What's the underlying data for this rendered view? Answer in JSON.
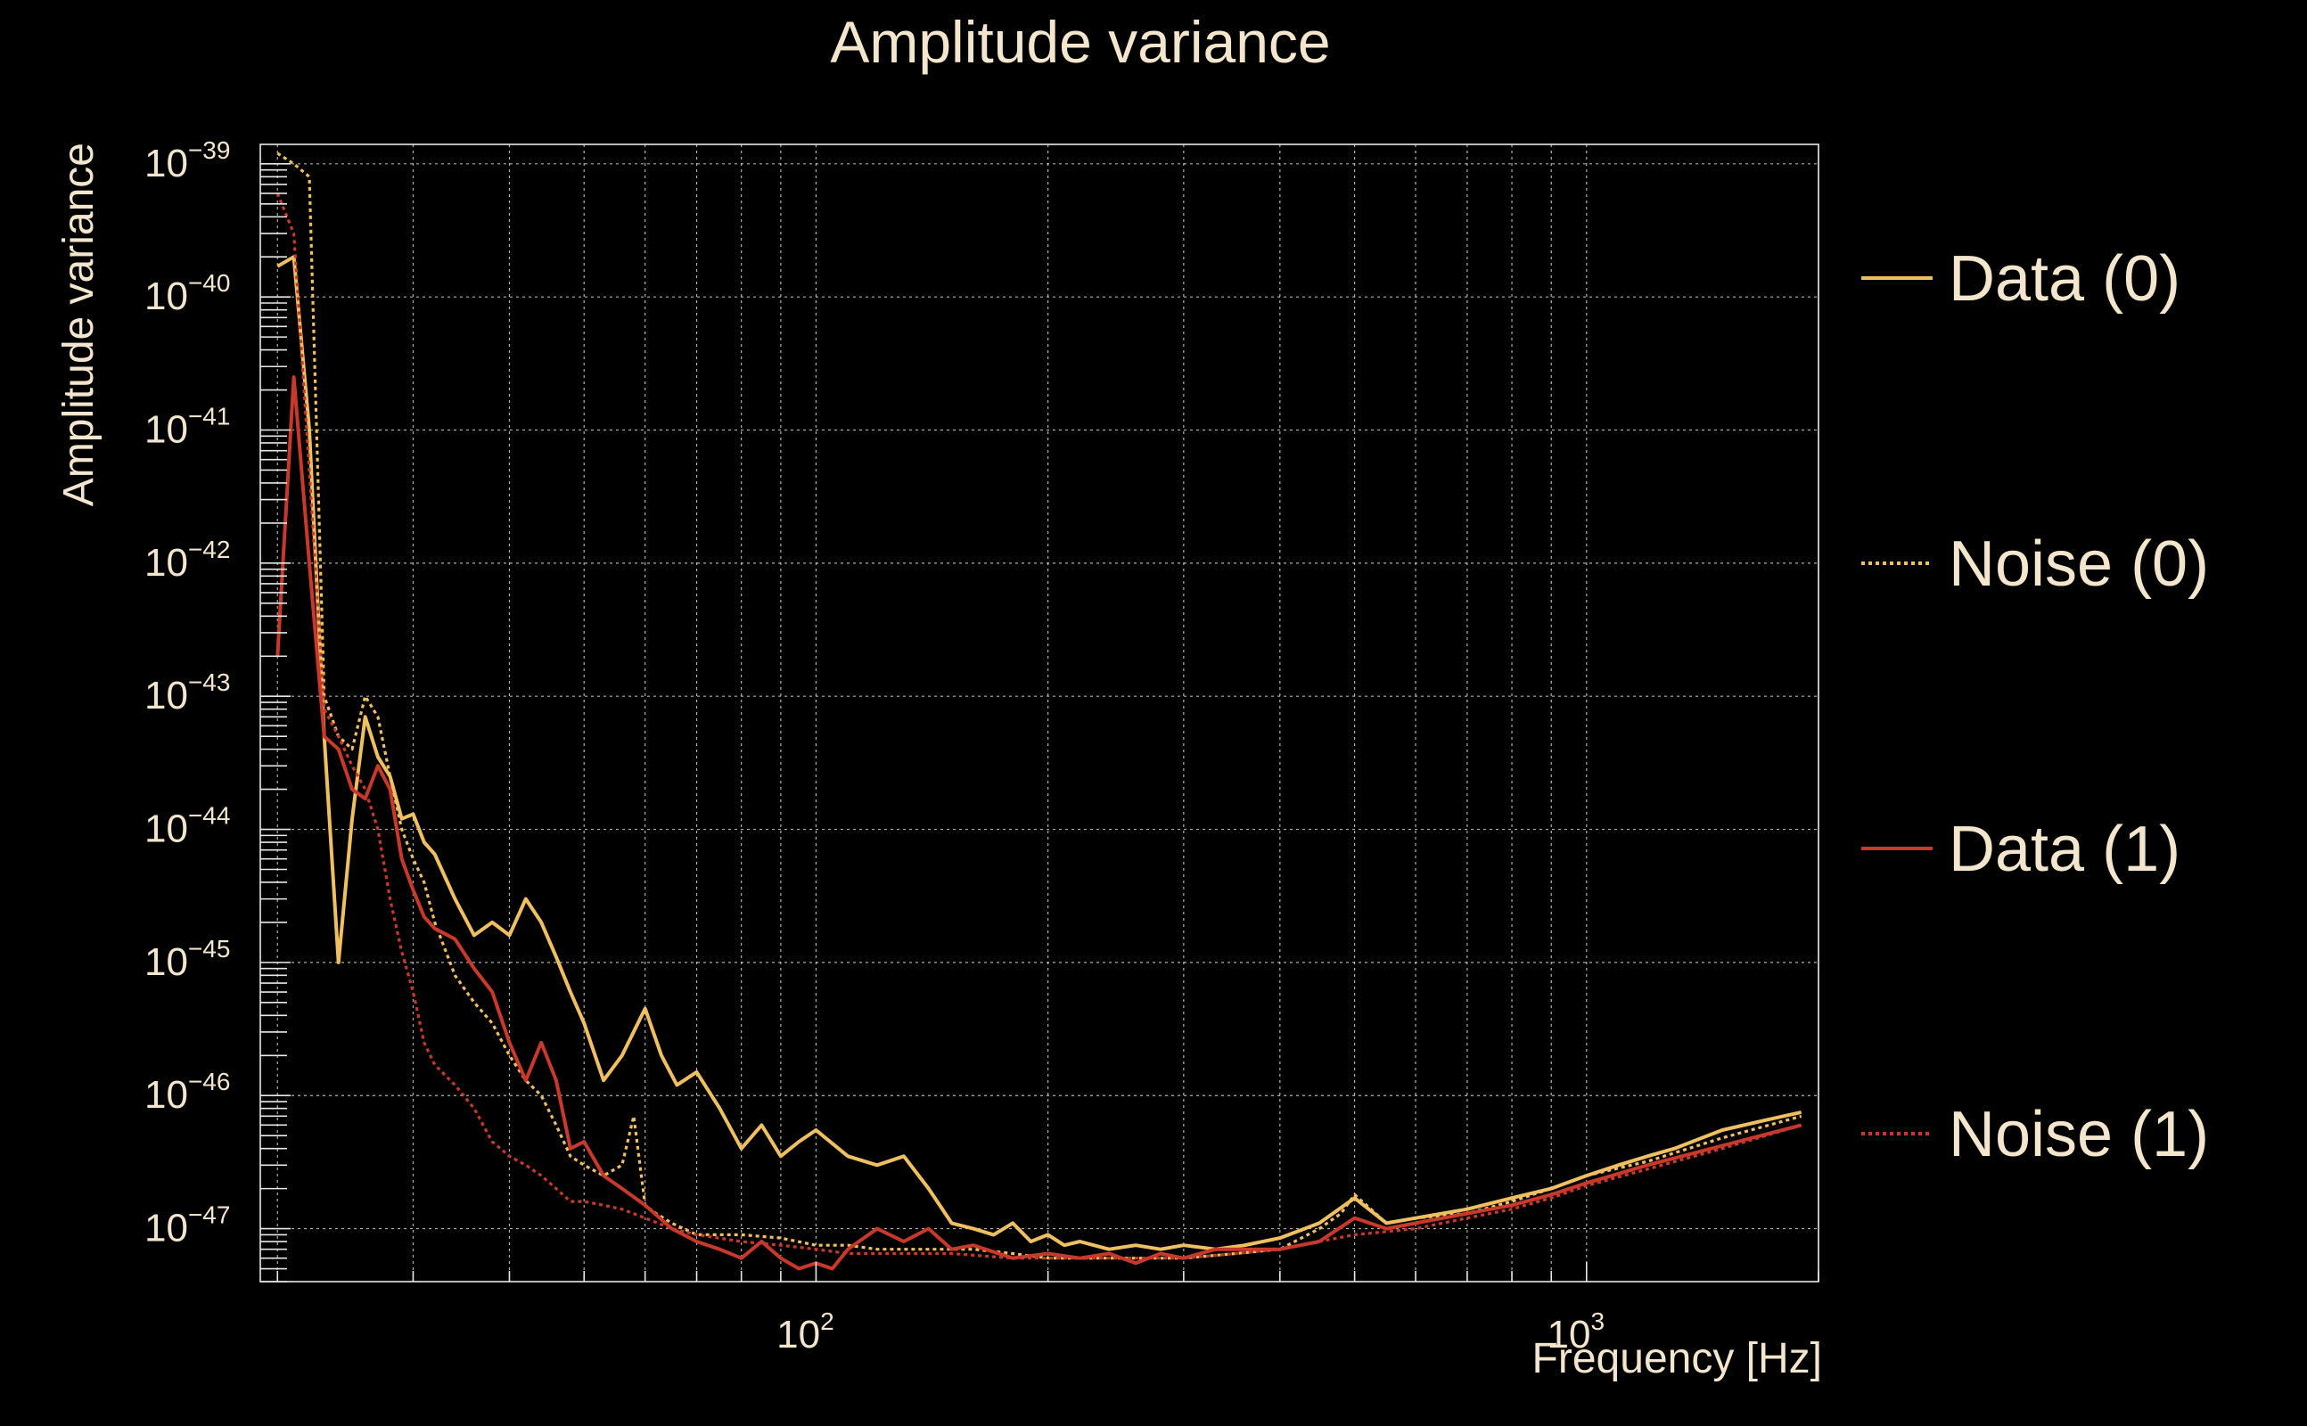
{
  "chart_data": {
    "type": "line",
    "title": "Amplitude variance",
    "xlabel": "Frequency [Hz]",
    "ylabel": "Amplitude variance",
    "xscale": "log",
    "yscale": "log",
    "xlim": [
      19,
      2000
    ],
    "ylim": [
      4e-48,
      1.4e-39
    ],
    "grid": true,
    "legend_position": "right",
    "x_ticks": [
      {
        "value": 100,
        "base": "10",
        "exp": "2"
      },
      {
        "value": 1000,
        "base": "10",
        "exp": "3"
      }
    ],
    "y_ticks": [
      {
        "value": 1e-39,
        "base": "10",
        "exp": "−39"
      },
      {
        "value": 1e-40,
        "base": "10",
        "exp": "−40"
      },
      {
        "value": 1e-41,
        "base": "10",
        "exp": "−41"
      },
      {
        "value": 1e-42,
        "base": "10",
        "exp": "−42"
      },
      {
        "value": 1e-43,
        "base": "10",
        "exp": "−43"
      },
      {
        "value": 1e-44,
        "base": "10",
        "exp": "−44"
      },
      {
        "value": 1e-45,
        "base": "10",
        "exp": "−45"
      },
      {
        "value": 1e-46,
        "base": "10",
        "exp": "−46"
      },
      {
        "value": 1e-47,
        "base": "10",
        "exp": "−47"
      }
    ],
    "series": [
      {
        "name": "Data (0)",
        "color": "#f0c060",
        "dash": "solid",
        "x": [
          20,
          21,
          22,
          23,
          24,
          25,
          26,
          27,
          28,
          29,
          30,
          31,
          32,
          34,
          36,
          38,
          40,
          42,
          44,
          46,
          48,
          50,
          53,
          56,
          60,
          63,
          66,
          70,
          75,
          80,
          85,
          90,
          95,
          100,
          110,
          120,
          130,
          140,
          150,
          160,
          170,
          180,
          190,
          200,
          210,
          220,
          240,
          260,
          280,
          300,
          330,
          360,
          400,
          450,
          500,
          550,
          600,
          700,
          800,
          900,
          1000,
          1100,
          1200,
          1300,
          1500,
          1700,
          1900
        ],
        "y": [
          1.7e-40,
          2e-40,
          1e-41,
          5e-44,
          1e-45,
          1.2e-44,
          7e-44,
          3.5e-44,
          2.5e-44,
          1.2e-44,
          1.3e-44,
          8e-45,
          6.5e-45,
          3e-45,
          1.6e-45,
          2e-45,
          1.6e-45,
          3e-45,
          2e-45,
          1.1e-45,
          6e-46,
          3.5e-46,
          1.3e-46,
          2e-46,
          4.5e-46,
          2e-46,
          1.2e-46,
          1.5e-46,
          8e-47,
          4e-47,
          6e-47,
          3.5e-47,
          4.5e-47,
          5.5e-47,
          3.5e-47,
          3e-47,
          3.5e-47,
          2e-47,
          1.1e-47,
          1e-47,
          9e-48,
          1.1e-47,
          8e-48,
          9e-48,
          7.5e-48,
          8e-48,
          7e-48,
          7.5e-48,
          7e-48,
          7.5e-48,
          7e-48,
          7.5e-48,
          8.5e-48,
          1.1e-47,
          1.7e-47,
          1.1e-47,
          1.2e-47,
          1.4e-47,
          1.7e-47,
          2e-47,
          2.5e-47,
          3e-47,
          3.5e-47,
          4e-47,
          5.5e-47,
          6.5e-47,
          7.5e-47
        ]
      },
      {
        "name": "Noise (0)",
        "color": "#f0c060",
        "dash": "dotted",
        "x": [
          20,
          21,
          22,
          23,
          24,
          25,
          26,
          27,
          28,
          29,
          30,
          31,
          32,
          34,
          36,
          38,
          40,
          42,
          44,
          46,
          48,
          50,
          53,
          56,
          58,
          60,
          62,
          65,
          70,
          75,
          80,
          90,
          100,
          110,
          120,
          130,
          140,
          160,
          180,
          200,
          240,
          280,
          300,
          350,
          400,
          450,
          480,
          500,
          550,
          600,
          700,
          800,
          900,
          1000,
          1200,
          1500,
          1900
        ],
        "y": [
          1.2e-39,
          1e-39,
          8e-40,
          1e-43,
          5e-44,
          4e-44,
          1e-43,
          7e-44,
          2.5e-44,
          1e-44,
          6e-45,
          4e-45,
          2e-45,
          8e-46,
          5e-46,
          3.5e-46,
          2e-46,
          1.3e-46,
          1e-46,
          6e-47,
          3.5e-47,
          3e-47,
          2.5e-47,
          3e-47,
          7e-47,
          1.5e-47,
          1.3e-47,
          1.1e-47,
          9e-48,
          9e-48,
          9e-48,
          8.5e-48,
          7.5e-48,
          7.5e-48,
          7e-48,
          7e-48,
          7e-48,
          7e-48,
          6.5e-48,
          6e-48,
          6e-48,
          6e-48,
          6e-48,
          6.5e-48,
          7e-48,
          1e-47,
          1.3e-47,
          1.8e-47,
          1.1e-47,
          1.2e-47,
          1.3e-47,
          1.6e-47,
          2e-47,
          2.5e-47,
          3.2e-47,
          4.8e-47,
          7e-47
        ]
      },
      {
        "name": "Data (1)",
        "color": "#c8392b",
        "dash": "solid",
        "x": [
          20,
          21,
          22,
          23,
          24,
          25,
          26,
          27,
          28,
          29,
          30,
          31,
          32,
          34,
          36,
          38,
          40,
          42,
          44,
          46,
          48,
          50,
          53,
          56,
          60,
          65,
          70,
          75,
          80,
          85,
          90,
          95,
          100,
          105,
          110,
          120,
          130,
          140,
          150,
          160,
          180,
          200,
          220,
          240,
          260,
          280,
          300,
          330,
          360,
          400,
          450,
          500,
          550,
          600,
          700,
          800,
          900,
          1000,
          1200,
          1500,
          1900
        ],
        "y": [
          2e-43,
          2.5e-41,
          1e-42,
          5e-44,
          4e-44,
          2e-44,
          1.7e-44,
          3e-44,
          2e-44,
          6e-45,
          3.5e-45,
          2.2e-45,
          1.8e-45,
          1.5e-45,
          9e-46,
          6e-46,
          2.5e-46,
          1.3e-46,
          2.5e-46,
          1.3e-46,
          4e-47,
          4.5e-47,
          2.5e-47,
          2e-47,
          1.5e-47,
          1e-47,
          8e-48,
          7e-48,
          6e-48,
          8e-48,
          6e-48,
          5e-48,
          5.5e-48,
          5e-48,
          7e-48,
          1e-47,
          8e-48,
          1e-47,
          7e-48,
          7.5e-48,
          6e-48,
          6.5e-48,
          6e-48,
          6.5e-48,
          5.5e-48,
          6.5e-48,
          6e-48,
          7e-48,
          7e-48,
          7e-48,
          8e-48,
          1.2e-47,
          1e-47,
          1.1e-47,
          1.3e-47,
          1.5e-47,
          1.8e-47,
          2.2e-47,
          3e-47,
          4.2e-47,
          6e-47
        ]
      },
      {
        "name": "Noise (1)",
        "color": "#c8392b",
        "dash": "dotted",
        "x": [
          20,
          21,
          22,
          23,
          24,
          25,
          26,
          27,
          28,
          29,
          30,
          31,
          32,
          34,
          36,
          38,
          40,
          42,
          44,
          46,
          48,
          50,
          53,
          56,
          60,
          65,
          70,
          80,
          90,
          100,
          110,
          120,
          130,
          150,
          180,
          200,
          240,
          280,
          300,
          350,
          400,
          450,
          500,
          550,
          600,
          700,
          800,
          900,
          1000,
          1200,
          1500,
          1900
        ],
        "y": [
          6e-40,
          3e-40,
          5e-42,
          8e-44,
          5e-44,
          3e-44,
          2e-44,
          1e-44,
          3e-45,
          1.2e-45,
          6e-46,
          2.5e-46,
          1.7e-46,
          1.2e-46,
          8e-47,
          4.5e-47,
          3.5e-47,
          3e-47,
          2.5e-47,
          2e-47,
          1.6e-47,
          1.6e-47,
          1.5e-47,
          1.4e-47,
          1.2e-47,
          1e-47,
          9e-48,
          8e-48,
          7.5e-48,
          7e-48,
          6.5e-48,
          6.5e-48,
          6.5e-48,
          6.5e-48,
          6e-48,
          6e-48,
          6e-48,
          6e-48,
          6e-48,
          6.5e-48,
          7e-48,
          8e-48,
          9e-48,
          9.5e-48,
          1e-47,
          1.2e-47,
          1.4e-47,
          1.7e-47,
          2.1e-47,
          2.8e-47,
          4e-47,
          6e-47
        ]
      }
    ]
  }
}
